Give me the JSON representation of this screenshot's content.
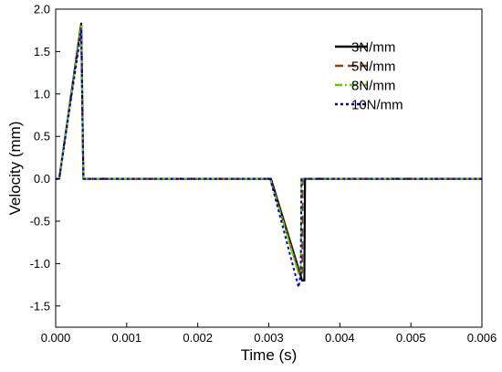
{
  "chart_data": {
    "type": "line",
    "xlabel": "Time (s)",
    "ylabel": "Velocity (mm)",
    "xlim": [
      0.0,
      0.006
    ],
    "ylim": [
      -1.75,
      2.0
    ],
    "x_ticks": [
      0.0,
      0.001,
      0.002,
      0.003,
      0.004,
      0.005,
      0.006
    ],
    "x_tick_labels": [
      "0.000",
      "0.001",
      "0.002",
      "0.003",
      "0.004",
      "0.005",
      "0.006"
    ],
    "y_ticks": [
      2.0,
      1.5,
      1.0,
      0.5,
      0.0,
      -0.5,
      -1.0,
      -1.5
    ],
    "y_tick_labels": [
      "2.0",
      "1.5",
      "1.0",
      "0.5",
      "0.0",
      "-0.5",
      "-1.0",
      "-1.5"
    ],
    "legend_position": "top-right",
    "grid": false,
    "series": [
      {
        "name": "3N/mm",
        "color": "#000000",
        "dash": "solid",
        "points": [
          [
            0.0,
            0.0
          ],
          [
            5e-05,
            0.0
          ],
          [
            0.00036,
            1.83
          ],
          [
            0.00039,
            0.0
          ],
          [
            0.00303,
            0.0
          ],
          [
            0.00347,
            -1.2
          ],
          [
            0.0035,
            -1.2
          ],
          [
            0.00351,
            0.0
          ],
          [
            0.006,
            0.0
          ]
        ]
      },
      {
        "name": "5N/mm",
        "color": "#8B4513",
        "dash": "long-dash",
        "points": [
          [
            0.0,
            0.0
          ],
          [
            5e-05,
            0.0
          ],
          [
            0.00036,
            1.8
          ],
          [
            0.00039,
            0.0
          ],
          [
            0.00302,
            0.0
          ],
          [
            0.00344,
            -1.15
          ],
          [
            0.00347,
            -1.1
          ],
          [
            0.00348,
            0.0
          ],
          [
            0.006,
            0.0
          ]
        ]
      },
      {
        "name": "8N/mm",
        "color": "#66CC00",
        "dash": "dash-dot",
        "points": [
          [
            0.0,
            0.0
          ],
          [
            5e-05,
            0.0
          ],
          [
            0.00036,
            1.8
          ],
          [
            0.00039,
            0.0
          ],
          [
            0.00302,
            0.0
          ],
          [
            0.00342,
            -1.12
          ],
          [
            0.00345,
            -1.1
          ],
          [
            0.00346,
            0.0
          ],
          [
            0.006,
            0.0
          ]
        ]
      },
      {
        "name": "10N/mm",
        "color": "#0000CC",
        "dash": "short-dash",
        "points": [
          [
            0.0,
            0.0
          ],
          [
            5e-05,
            0.0
          ],
          [
            0.00036,
            1.75
          ],
          [
            0.00039,
            0.0
          ],
          [
            0.00302,
            0.0
          ],
          [
            0.00342,
            -1.28
          ],
          [
            0.00345,
            -1.1
          ],
          [
            0.00346,
            0.0
          ],
          [
            0.006,
            0.0
          ]
        ]
      }
    ]
  }
}
